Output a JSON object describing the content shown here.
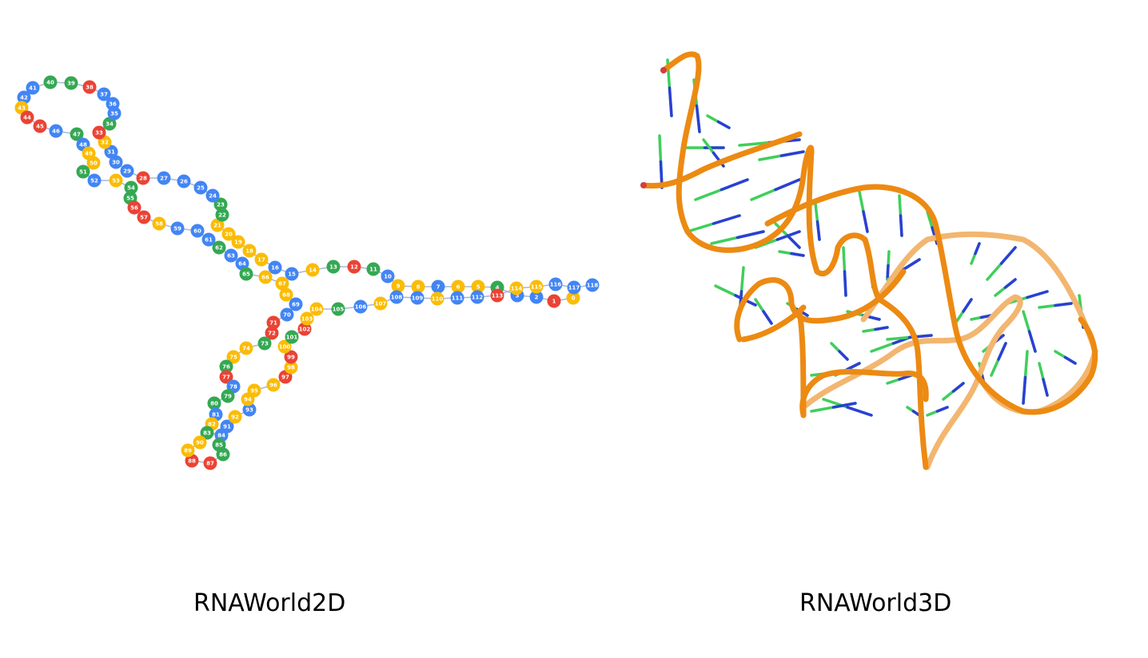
{
  "panels": {
    "left": {
      "caption": "RNAWorld2D"
    },
    "right": {
      "caption": "RNAWorld3D"
    }
  },
  "colors": {
    "blue": "#4285f4",
    "green": "#34a853",
    "yellow": "#fbbc05",
    "red": "#ea4335",
    "backbone": "#ec8a12",
    "backbone_pale": "#f2b670",
    "base_green": "#3fcf5a",
    "base_blue": "#2b3fd6",
    "edge": "#a9b8d6"
  },
  "nodes": [
    {
      "id": "0",
      "c": "yellow"
    },
    {
      "id": "1",
      "c": "red"
    },
    {
      "id": "2",
      "c": "blue"
    },
    {
      "id": "3",
      "c": "blue"
    },
    {
      "id": "4",
      "c": "green"
    },
    {
      "id": "5",
      "c": "yellow"
    },
    {
      "id": "6",
      "c": "yellow"
    },
    {
      "id": "7",
      "c": "blue"
    },
    {
      "id": "8",
      "c": "yellow"
    },
    {
      "id": "9",
      "c": "yellow"
    },
    {
      "id": "10",
      "c": "blue"
    },
    {
      "id": "11",
      "c": "green"
    },
    {
      "id": "12",
      "c": "red"
    },
    {
      "id": "13",
      "c": "green"
    },
    {
      "id": "14",
      "c": "yellow"
    },
    {
      "id": "15",
      "c": "blue"
    },
    {
      "id": "16",
      "c": "blue"
    },
    {
      "id": "17",
      "c": "yellow"
    },
    {
      "id": "18",
      "c": "yellow"
    },
    {
      "id": "19",
      "c": "yellow"
    },
    {
      "id": "20",
      "c": "yellow"
    },
    {
      "id": "21",
      "c": "yellow"
    },
    {
      "id": "22",
      "c": "green"
    },
    {
      "id": "23",
      "c": "green"
    },
    {
      "id": "24",
      "c": "blue"
    },
    {
      "id": "25",
      "c": "blue"
    },
    {
      "id": "26",
      "c": "blue"
    },
    {
      "id": "27",
      "c": "blue"
    },
    {
      "id": "28",
      "c": "red"
    },
    {
      "id": "29",
      "c": "blue"
    },
    {
      "id": "30",
      "c": "blue"
    },
    {
      "id": "31",
      "c": "blue"
    },
    {
      "id": "32",
      "c": "yellow"
    },
    {
      "id": "33",
      "c": "red"
    },
    {
      "id": "34",
      "c": "green"
    },
    {
      "id": "35",
      "c": "blue"
    },
    {
      "id": "36",
      "c": "blue"
    },
    {
      "id": "37",
      "c": "blue"
    },
    {
      "id": "38",
      "c": "red"
    },
    {
      "id": "39",
      "c": "green"
    },
    {
      "id": "40",
      "c": "green"
    },
    {
      "id": "41",
      "c": "blue"
    },
    {
      "id": "42",
      "c": "blue"
    },
    {
      "id": "43",
      "c": "yellow"
    },
    {
      "id": "44",
      "c": "red"
    },
    {
      "id": "45",
      "c": "red"
    },
    {
      "id": "46",
      "c": "blue"
    },
    {
      "id": "47",
      "c": "green"
    },
    {
      "id": "48",
      "c": "blue"
    },
    {
      "id": "49",
      "c": "yellow"
    },
    {
      "id": "50",
      "c": "yellow"
    },
    {
      "id": "51",
      "c": "green"
    },
    {
      "id": "52",
      "c": "blue"
    },
    {
      "id": "53",
      "c": "yellow"
    },
    {
      "id": "54",
      "c": "green"
    },
    {
      "id": "55",
      "c": "green"
    },
    {
      "id": "56",
      "c": "red"
    },
    {
      "id": "57",
      "c": "red"
    },
    {
      "id": "58",
      "c": "yellow"
    },
    {
      "id": "59",
      "c": "blue"
    },
    {
      "id": "60",
      "c": "blue"
    },
    {
      "id": "61",
      "c": "blue"
    },
    {
      "id": "62",
      "c": "green"
    },
    {
      "id": "63",
      "c": "blue"
    },
    {
      "id": "64",
      "c": "blue"
    },
    {
      "id": "65",
      "c": "green"
    },
    {
      "id": "66",
      "c": "yellow"
    },
    {
      "id": "67",
      "c": "yellow"
    },
    {
      "id": "68",
      "c": "yellow"
    },
    {
      "id": "69",
      "c": "blue"
    },
    {
      "id": "70",
      "c": "blue"
    },
    {
      "id": "71",
      "c": "red"
    },
    {
      "id": "72",
      "c": "red"
    },
    {
      "id": "73",
      "c": "green"
    },
    {
      "id": "74",
      "c": "yellow"
    },
    {
      "id": "75",
      "c": "yellow"
    },
    {
      "id": "76",
      "c": "green"
    },
    {
      "id": "77",
      "c": "red"
    },
    {
      "id": "78",
      "c": "blue"
    },
    {
      "id": "79",
      "c": "green"
    },
    {
      "id": "80",
      "c": "green"
    },
    {
      "id": "81",
      "c": "blue"
    },
    {
      "id": "82",
      "c": "yellow"
    },
    {
      "id": "83",
      "c": "green"
    },
    {
      "id": "84",
      "c": "blue"
    },
    {
      "id": "85",
      "c": "green"
    },
    {
      "id": "86",
      "c": "green"
    },
    {
      "id": "87",
      "c": "red"
    },
    {
      "id": "88",
      "c": "red"
    },
    {
      "id": "89",
      "c": "yellow"
    },
    {
      "id": "90",
      "c": "yellow"
    },
    {
      "id": "91",
      "c": "blue"
    },
    {
      "id": "92",
      "c": "yellow"
    },
    {
      "id": "93",
      "c": "blue"
    },
    {
      "id": "94",
      "c": "yellow"
    },
    {
      "id": "95",
      "c": "yellow"
    },
    {
      "id": "96",
      "c": "yellow"
    },
    {
      "id": "97",
      "c": "red"
    },
    {
      "id": "98",
      "c": "yellow"
    },
    {
      "id": "99",
      "c": "red"
    },
    {
      "id": "100",
      "c": "yellow"
    },
    {
      "id": "101",
      "c": "green"
    },
    {
      "id": "102",
      "c": "red"
    },
    {
      "id": "103",
      "c": "yellow"
    },
    {
      "id": "104",
      "c": "yellow"
    },
    {
      "id": "105",
      "c": "green"
    },
    {
      "id": "106",
      "c": "blue"
    },
    {
      "id": "107",
      "c": "yellow"
    },
    {
      "id": "108",
      "c": "blue"
    },
    {
      "id": "109",
      "c": "blue"
    },
    {
      "id": "110",
      "c": "yellow"
    },
    {
      "id": "111",
      "c": "blue"
    },
    {
      "id": "112",
      "c": "blue"
    },
    {
      "id": "113",
      "c": "red"
    },
    {
      "id": "114",
      "c": "yellow"
    },
    {
      "id": "115",
      "c": "yellow"
    },
    {
      "id": "116",
      "c": "blue"
    },
    {
      "id": "117",
      "c": "blue"
    },
    {
      "id": "118",
      "c": "blue"
    }
  ]
}
